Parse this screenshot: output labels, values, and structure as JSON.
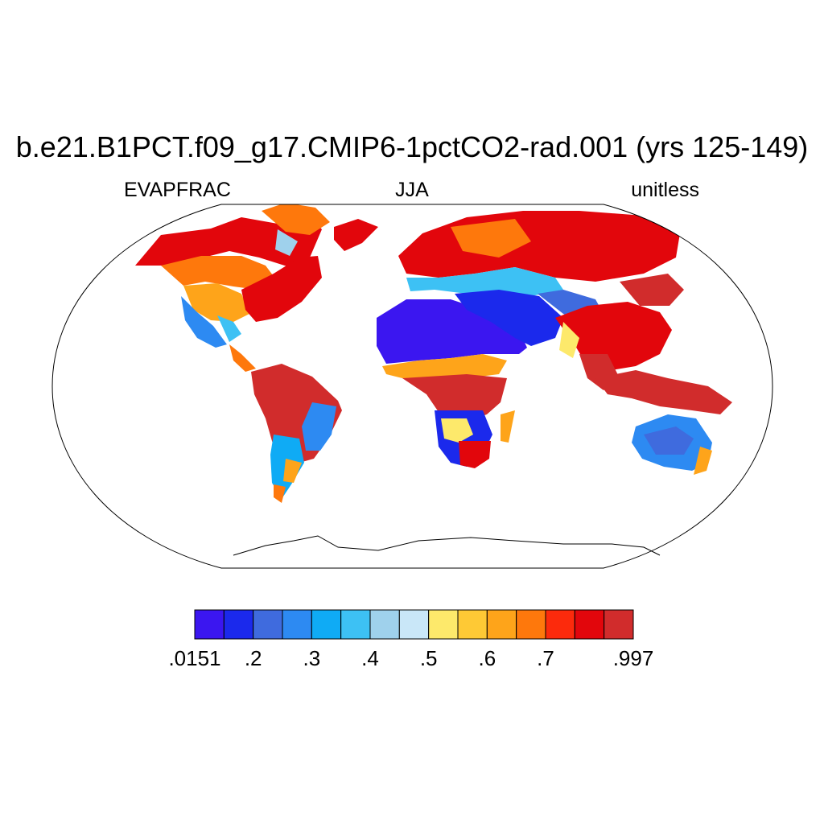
{
  "title": "b.e21.B1PCT.f09_g17.CMIP6-1pctCO2-rad.001 (yrs 125-149)",
  "left_string": "EVAPFRAC",
  "center_string": "JJA",
  "right_string": "unitless",
  "projection": "Robinson",
  "colorbar": {
    "orientation": "horizontal",
    "colors": [
      "#3b16f0",
      "#1b29ec",
      "#3f6bde",
      "#2d8af2",
      "#0fabf5",
      "#3dc1f4",
      "#9fd1ec",
      "#c9e7f8",
      "#fde96b",
      "#fec935",
      "#fea41a",
      "#fe780c",
      "#fc2a0c",
      "#e2060c",
      "#d12c2c"
    ],
    "labels": [
      ".0151",
      ".2",
      ".3",
      ".4",
      ".5",
      ".6",
      ".7",
      ".997"
    ],
    "label_boundaries": [
      0,
      2,
      4,
      6,
      8,
      10,
      12,
      15
    ]
  }
}
